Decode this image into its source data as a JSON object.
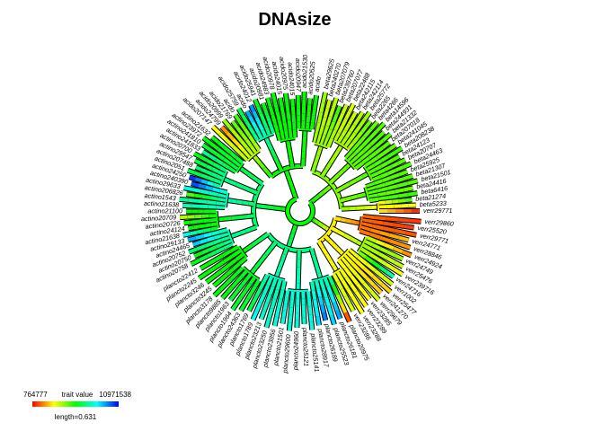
{
  "chart_data": {
    "type": "phylogram-circular",
    "title": "DNAsize",
    "trait_label": "trait value",
    "trait_min": "764777",
    "trait_max": "10971538",
    "trait_range": [
      764777,
      10971538
    ],
    "scale_label": "length=0.631",
    "colors": [
      "#ff0000",
      "#ffff00",
      "#00ff00",
      "#00ffff",
      "#0000ff"
    ],
    "clades": [
      {
        "name": "beta",
        "tips": [
          {
            "label": "beta29625",
            "v": 0.35
          },
          {
            "label": "beta240270",
            "v": 0.3
          },
          {
            "label": "beta207079",
            "v": 0.32
          },
          {
            "label": "beta239760",
            "v": 0.45
          },
          {
            "label": "beta207077",
            "v": 0.3
          },
          {
            "label": "beta22488",
            "v": 0.28
          },
          {
            "label": "beta242115",
            "v": 0.3
          },
          {
            "label": "beta242114",
            "v": 0.32
          },
          {
            "label": "beta25772",
            "v": 0.35
          },
          {
            "label": "beta2265",
            "v": 0.4
          },
          {
            "label": "beta4266",
            "v": 0.4
          },
          {
            "label": "beta14596",
            "v": 0.42
          },
          {
            "label": "beta244931",
            "v": 0.42
          },
          {
            "label": "beta21332",
            "v": 0.42
          },
          {
            "label": "beta207018",
            "v": 0.42
          },
          {
            "label": "beta241045",
            "v": 0.4
          },
          {
            "label": "beta208238",
            "v": 0.45
          },
          {
            "label": "beta24123",
            "v": 0.42
          },
          {
            "label": "beta20707",
            "v": 0.42
          },
          {
            "label": "beta24463",
            "v": 0.42
          },
          {
            "label": "beta25925",
            "v": 0.42
          },
          {
            "label": "beta21307",
            "v": 0.42
          },
          {
            "label": "beta21501",
            "v": 0.42
          },
          {
            "label": "beta24416",
            "v": 0.4
          },
          {
            "label": "beta6416",
            "v": 0.45
          },
          {
            "label": "beta21274",
            "v": 0.45
          },
          {
            "label": "beta5233",
            "v": 0.25
          },
          {
            "label": "verr29771",
            "v": 0.02
          }
        ]
      },
      {
        "name": "acido",
        "tips": [
          {
            "label": "acido207147",
            "v": 0.25
          },
          {
            "label": "acido24799",
            "v": 0.12
          },
          {
            "label": "acido20999",
            "v": 0.35
          },
          {
            "label": "acido21769",
            "v": 0.42
          },
          {
            "label": "acido",
            "v": 0.45
          },
          {
            "label": "acido25759",
            "v": 0.55
          },
          {
            "label": "acido",
            "v": 0.85
          },
          {
            "label": "acido24012",
            "v": 0.88
          },
          {
            "label": "acido25941",
            "v": 0.5
          },
          {
            "label": "acido20981",
            "v": 0.5
          },
          {
            "label": "acido24983",
            "v": 0.5
          },
          {
            "label": "acido20978",
            "v": 0.5
          },
          {
            "label": "acido24015",
            "v": 0.5
          },
          {
            "label": "acido20975",
            "v": 0.5
          },
          {
            "label": "acido24015",
            "v": 0.5
          },
          {
            "label": "acido20947",
            "v": 0.5
          },
          {
            "label": "acido21530",
            "v": 0.5
          },
          {
            "label": "acido20525",
            "v": 0.48
          },
          {
            "label": "acido",
            "v": 0.5
          }
        ]
      },
      {
        "name": "actino",
        "tips": [
          {
            "label": "actino20758",
            "v": 0.5
          },
          {
            "label": "actino20750",
            "v": 0.5
          },
          {
            "label": "actino20752",
            "v": 0.6
          },
          {
            "label": "actino24465",
            "v": 0.82
          },
          {
            "label": "actino29133",
            "v": 0.85
          },
          {
            "label": "actino21638",
            "v": 0.75
          },
          {
            "label": "actino24124",
            "v": 0.5
          },
          {
            "label": "actino20726",
            "v": 0.5
          },
          {
            "label": "actino20709",
            "v": 0.3
          },
          {
            "label": "actino21100",
            "v": 0.5
          },
          {
            "label": "actino21638",
            "v": 0.68
          },
          {
            "label": "actino1543",
            "v": 0.65
          },
          {
            "label": "actino206826",
            "v": 0.4
          },
          {
            "label": "actino29633",
            "v": 0.72
          },
          {
            "label": "actino240390",
            "v": 0.95
          },
          {
            "label": "actino24250",
            "v": 0.98
          },
          {
            "label": "actino2051",
            "v": 0.55
          },
          {
            "label": "actino207488",
            "v": 0.6
          },
          {
            "label": "actino29547",
            "v": 0.55
          },
          {
            "label": "actino20700",
            "v": 0.5
          },
          {
            "label": "actino241833",
            "v": 0.65
          },
          {
            "label": "actino241810",
            "v": 0.55
          },
          {
            "label": "actino23972",
            "v": 0.5
          },
          {
            "label": "actino21632",
            "v": 0.5
          }
        ]
      },
      {
        "name": "plancto",
        "tips": [
          {
            "label": "plancto20975",
            "v": 0.02
          },
          {
            "label": "plancto26181",
            "v": 0.85
          },
          {
            "label": "plancto25523",
            "v": 0.8
          },
          {
            "label": "plancto26189",
            "v": 0.9
          },
          {
            "label": "plancto28917",
            "v": 0.8
          },
          {
            "label": "plancto25141",
            "v": 0.72
          },
          {
            "label": "plancto25121",
            "v": 0.7
          },
          {
            "label": "plancto24960",
            "v": 0.72
          },
          {
            "label": "plancto29600",
            "v": 0.7
          },
          {
            "label": "plancto21501",
            "v": 0.72
          },
          {
            "label": "plancto23856",
            "v": 0.72
          },
          {
            "label": "plancto23250",
            "v": 0.7
          },
          {
            "label": "plancto23213",
            "v": 0.7
          },
          {
            "label": "plancto1789",
            "v": 0.75
          },
          {
            "label": "plancto1769",
            "v": 0.55
          },
          {
            "label": "plancto24363",
            "v": 0.55
          },
          {
            "label": "plancto1964",
            "v": 0.55
          },
          {
            "label": "plancto1963",
            "v": 0.55
          },
          {
            "label": "plancto9885",
            "v": 0.5
          },
          {
            "label": "plancto3178",
            "v": 0.5
          },
          {
            "label": "plancto3245",
            "v": 0.5
          },
          {
            "label": "plancto3246",
            "v": 0.5
          },
          {
            "label": "plancto2245",
            "v": 0.5
          },
          {
            "label": "plancto22412",
            "v": 0.5
          }
        ]
      },
      {
        "name": "verr",
        "tips": [
          {
            "label": "verr29860",
            "v": 0.05
          },
          {
            "label": "verr25520",
            "v": 0.05
          },
          {
            "label": "verr29771",
            "v": 0.08
          },
          {
            "label": "verr24771",
            "v": 0.2
          },
          {
            "label": "verr28846",
            "v": 0.15
          },
          {
            "label": "verr24924",
            "v": 0.12
          },
          {
            "label": "verr24749",
            "v": 0.35
          },
          {
            "label": "verr25476",
            "v": 0.3
          },
          {
            "label": "verr239716",
            "v": 0.25
          },
          {
            "label": "verr24716",
            "v": 0.7
          },
          {
            "label": "verr1002",
            "v": 0.3
          },
          {
            "label": "verr25477",
            "v": 0.2
          },
          {
            "label": "verr241270",
            "v": 0.2
          },
          {
            "label": "verr29679",
            "v": 0.3
          },
          {
            "label": "verr23285",
            "v": 0.25
          },
          {
            "label": "verr23289",
            "v": 0.25
          },
          {
            "label": "verr23288",
            "v": 0.25
          },
          {
            "label": "verr23286",
            "v": 0.3
          }
        ]
      }
    ]
  }
}
